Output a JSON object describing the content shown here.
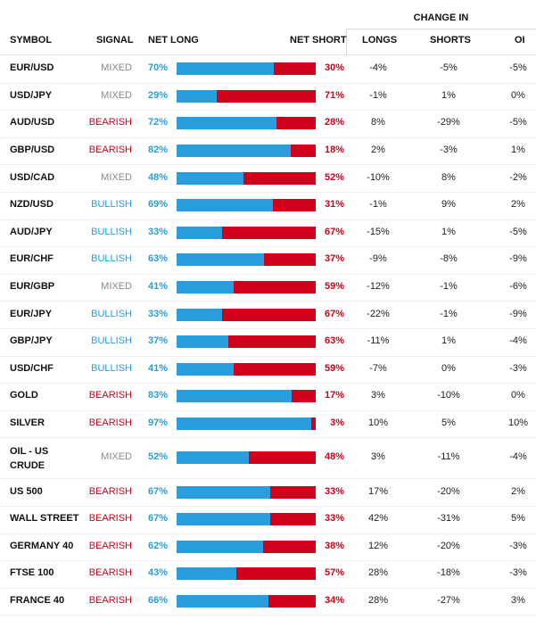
{
  "header": {
    "change_in": "CHANGE IN",
    "symbol": "SYMBOL",
    "signal": "SIGNAL",
    "net_long": "NET LONG",
    "net_short": "NET SHORT",
    "longs": "LONGS",
    "shorts": "SHORTS",
    "oi": "OI"
  },
  "colors": {
    "long_blue": "#2a9ddf",
    "short_red": "#d0021b",
    "mixed_gray": "#8a8a8a"
  },
  "rows": [
    {
      "symbol": "EUR/USD",
      "signal": "MIXED",
      "net_long": "70%",
      "net_long_value": 70,
      "net_short": "30%",
      "longs": "-4%",
      "shorts": "-5%",
      "oi": "-5%"
    },
    {
      "symbol": "USD/JPY",
      "signal": "MIXED",
      "net_long": "29%",
      "net_long_value": 29,
      "net_short": "71%",
      "longs": "-1%",
      "shorts": "1%",
      "oi": "0%"
    },
    {
      "symbol": "AUD/USD",
      "signal": "BEARISH",
      "net_long": "72%",
      "net_long_value": 72,
      "net_short": "28%",
      "longs": "8%",
      "shorts": "-29%",
      "oi": "-5%"
    },
    {
      "symbol": "GBP/USD",
      "signal": "BEARISH",
      "net_long": "82%",
      "net_long_value": 82,
      "net_short": "18%",
      "longs": "2%",
      "shorts": "-3%",
      "oi": "1%"
    },
    {
      "symbol": "USD/CAD",
      "signal": "MIXED",
      "net_long": "48%",
      "net_long_value": 48,
      "net_short": "52%",
      "longs": "-10%",
      "shorts": "8%",
      "oi": "-2%"
    },
    {
      "symbol": "NZD/USD",
      "signal": "BULLISH",
      "net_long": "69%",
      "net_long_value": 69,
      "net_short": "31%",
      "longs": "-1%",
      "shorts": "9%",
      "oi": "2%"
    },
    {
      "symbol": "AUD/JPY",
      "signal": "BULLISH",
      "net_long": "33%",
      "net_long_value": 33,
      "net_short": "67%",
      "longs": "-15%",
      "shorts": "1%",
      "oi": "-5%"
    },
    {
      "symbol": "EUR/CHF",
      "signal": "BULLISH",
      "net_long": "63%",
      "net_long_value": 63,
      "net_short": "37%",
      "longs": "-9%",
      "shorts": "-8%",
      "oi": "-9%"
    },
    {
      "symbol": "EUR/GBP",
      "signal": "MIXED",
      "net_long": "41%",
      "net_long_value": 41,
      "net_short": "59%",
      "longs": "-12%",
      "shorts": "-1%",
      "oi": "-6%"
    },
    {
      "symbol": "EUR/JPY",
      "signal": "BULLISH",
      "net_long": "33%",
      "net_long_value": 33,
      "net_short": "67%",
      "longs": "-22%",
      "shorts": "-1%",
      "oi": "-9%"
    },
    {
      "symbol": "GBP/JPY",
      "signal": "BULLISH",
      "net_long": "37%",
      "net_long_value": 37,
      "net_short": "63%",
      "longs": "-11%",
      "shorts": "1%",
      "oi": "-4%"
    },
    {
      "symbol": "USD/CHF",
      "signal": "BULLISH",
      "net_long": "41%",
      "net_long_value": 41,
      "net_short": "59%",
      "longs": "-7%",
      "shorts": "0%",
      "oi": "-3%"
    },
    {
      "symbol": "GOLD",
      "signal": "BEARISH",
      "net_long": "83%",
      "net_long_value": 83,
      "net_short": "17%",
      "longs": "3%",
      "shorts": "-10%",
      "oi": "0%"
    },
    {
      "symbol": "SILVER",
      "signal": "BEARISH",
      "net_long": "97%",
      "net_long_value": 97,
      "net_short": "3%",
      "longs": "10%",
      "shorts": "5%",
      "oi": "10%"
    },
    {
      "symbol": "OIL - US CRUDE",
      "symbol_line1": "OIL - US",
      "symbol_line2": "CRUDE",
      "signal": "MIXED",
      "net_long": "52%",
      "net_long_value": 52,
      "net_short": "48%",
      "longs": "3%",
      "shorts": "-11%",
      "oi": "-4%"
    },
    {
      "symbol": "US 500",
      "signal": "BEARISH",
      "net_long": "67%",
      "net_long_value": 67,
      "net_short": "33%",
      "longs": "17%",
      "shorts": "-20%",
      "oi": "2%"
    },
    {
      "symbol": "WALL STREET",
      "signal": "BEARISH",
      "net_long": "67%",
      "net_long_value": 67,
      "net_short": "33%",
      "longs": "42%",
      "shorts": "-31%",
      "oi": "5%"
    },
    {
      "symbol": "GERMANY 40",
      "signal": "BEARISH",
      "net_long": "62%",
      "net_long_value": 62,
      "net_short": "38%",
      "longs": "12%",
      "shorts": "-20%",
      "oi": "-3%"
    },
    {
      "symbol": "FTSE 100",
      "signal": "BEARISH",
      "net_long": "43%",
      "net_long_value": 43,
      "net_short": "57%",
      "longs": "28%",
      "shorts": "-18%",
      "oi": "-3%"
    },
    {
      "symbol": "FRANCE 40",
      "signal": "BEARISH",
      "net_long": "66%",
      "net_long_value": 66,
      "net_short": "34%",
      "longs": "28%",
      "shorts": "-27%",
      "oi": "3%"
    }
  ]
}
